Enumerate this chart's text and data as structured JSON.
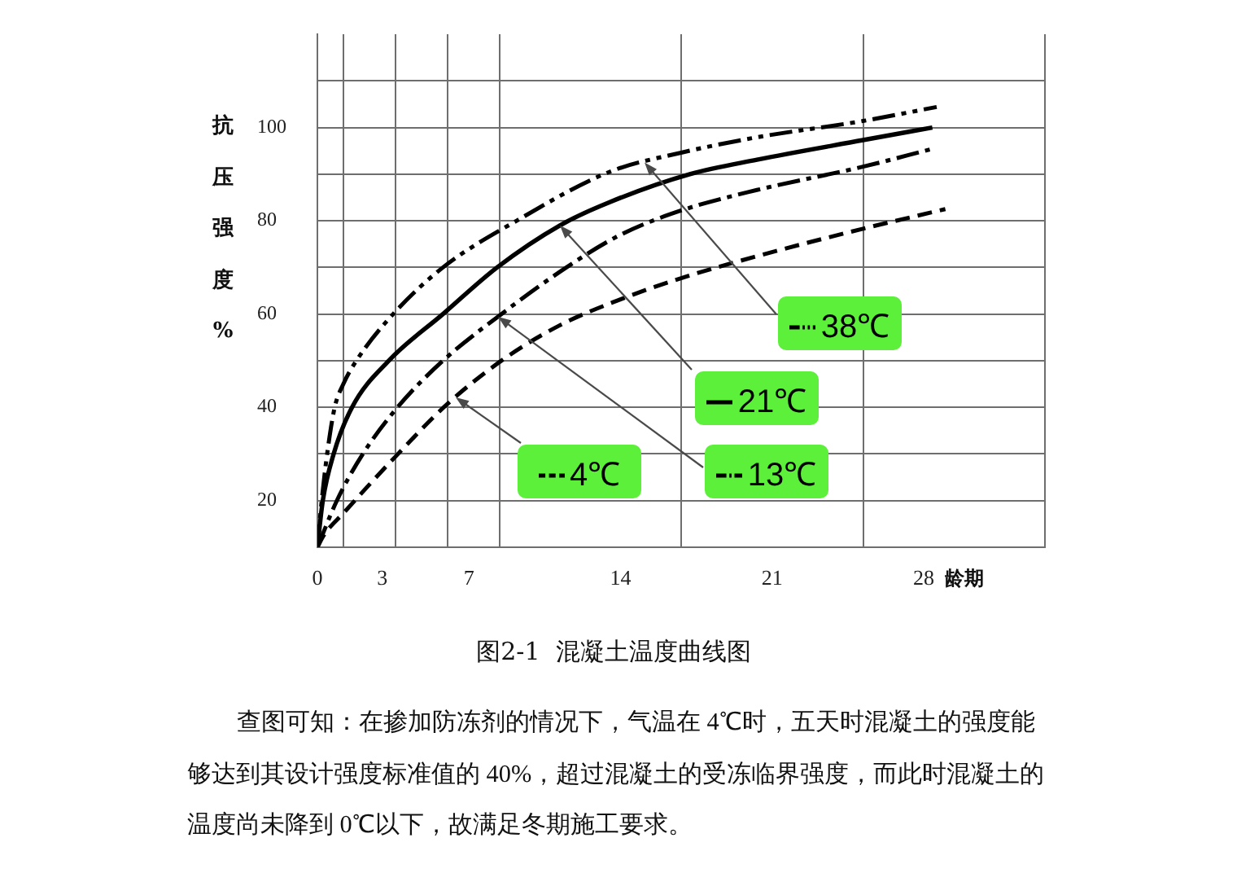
{
  "chart_data": {
    "type": "line",
    "xlabel": "龄期",
    "ylabel": "抗压强度%",
    "annotations": [
      "图2-1  混凝土温度曲线图",
      "查图可知：在掺加防冻剂的情况下，气温在 4℃时，五天时混凝土的强度能够达到其设计强度标准值的 40%，超过混凝土的受冻临界强度，而此时混凝土的温度尚未降到 0℃以下，故满足冬期施工要求。"
    ],
    "xlim": [
      0,
      33.6
    ],
    "xticks": [
      0,
      {
        "value": 1.2,
        "label": null
      },
      3,
      {
        "value": 3.6,
        "label": null
      },
      {
        "value": 6,
        "label": null
      },
      7,
      {
        "value": 8.4,
        "label": null
      },
      14,
      {
        "value": 16.8,
        "label": null
      },
      21,
      {
        "value": 25.2,
        "label": null
      },
      28,
      {
        "value": 33.6,
        "label": null
      }
    ],
    "ylim": [
      10,
      120
    ],
    "yticks": [
      20,
      {
        "value": 30,
        "label": null
      },
      40,
      {
        "value": 50,
        "label": null
      },
      60,
      {
        "value": 70,
        "label": null
      },
      80,
      {
        "value": 90,
        "label": null
      },
      100,
      {
        "value": 110,
        "label": null
      }
    ],
    "grid": true,
    "marker": "none",
    "legend": "bottom right",
    "series": [
      {
        "name": "4℃",
        "color": "#000000",
        "line_style": "dashed",
        "x": [
          0,
          0.3,
          1.2,
          3.6,
          6,
          8.5,
          11.2,
          13.8,
          16.8,
          20.3,
          25.2,
          29
        ],
        "values": [
          10,
          12.6,
          17.3,
          29.4,
          40.7,
          50,
          57.6,
          62.8,
          67.7,
          72.4,
          78.3,
          82.5
        ]
      },
      {
        "name": "13℃",
        "color": "#000000",
        "line_style": "dashed",
        "x": [
          0,
          0.9,
          2.1,
          3.7,
          5.8,
          8.5,
          11.5,
          14,
          16.8,
          20.3,
          25.2,
          28.3
        ],
        "values": [
          10,
          20,
          30,
          40,
          50,
          60,
          70,
          77,
          82.2,
          86.6,
          91.6,
          95.3
        ]
      },
      {
        "name": "21℃",
        "color": "#000000",
        "line_style": "solid",
        "x": [
          0,
          0.25,
          0.75,
          1.6,
          3.3,
          5.8,
          8.3,
          11.2,
          13.5,
          17.2,
          20.3,
          25.2,
          28.4
        ],
        "values": [
          10,
          20,
          30,
          40,
          50,
          60,
          70,
          79,
          84,
          90,
          93.1,
          97.3,
          100
        ]
      },
      {
        "name": "38℃",
        "color": "#000000",
        "line_style": "dashed",
        "x": [
          0,
          0.2,
          0.45,
          0.8,
          1.2,
          1.8,
          3.5,
          5.8,
          9.2,
          13.5,
          16.8,
          20.3,
          25.2,
          28.6
        ],
        "values": [
          10,
          20,
          30,
          40,
          45,
          50,
          60,
          70,
          80,
          90.5,
          94.6,
          97.9,
          101.4,
          104.4
        ]
      }
    ]
  }
}
